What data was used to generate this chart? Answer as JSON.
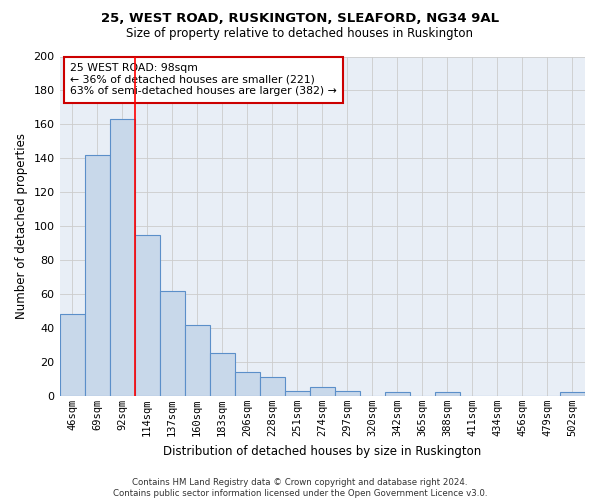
{
  "title1": "25, WEST ROAD, RUSKINGTON, SLEAFORD, NG34 9AL",
  "title2": "Size of property relative to detached houses in Ruskington",
  "xlabel": "Distribution of detached houses by size in Ruskington",
  "ylabel": "Number of detached properties",
  "bar_labels": [
    "46sqm",
    "69sqm",
    "92sqm",
    "114sqm",
    "137sqm",
    "160sqm",
    "183sqm",
    "206sqm",
    "228sqm",
    "251sqm",
    "274sqm",
    "297sqm",
    "320sqm",
    "342sqm",
    "365sqm",
    "388sqm",
    "411sqm",
    "434sqm",
    "456sqm",
    "479sqm",
    "502sqm"
  ],
  "bar_values": [
    48,
    142,
    163,
    95,
    62,
    42,
    25,
    14,
    11,
    3,
    5,
    3,
    0,
    2,
    0,
    2,
    0,
    0,
    0,
    0,
    2
  ],
  "bar_color": "#c8d8ea",
  "bar_edge_color": "#5b8fc9",
  "grid_color": "#cccccc",
  "annotation_text": "25 WEST ROAD: 98sqm\n← 36% of detached houses are smaller (221)\n63% of semi-detached houses are larger (382) →",
  "annotation_box_color": "#ffffff",
  "annotation_box_edge": "#cc0000",
  "red_line_x": 2.5,
  "footnote": "Contains HM Land Registry data © Crown copyright and database right 2024.\nContains public sector information licensed under the Open Government Licence v3.0.",
  "ylim": [
    0,
    200
  ],
  "yticks": [
    0,
    20,
    40,
    60,
    80,
    100,
    120,
    140,
    160,
    180,
    200
  ],
  "bg_color": "#e8eef6"
}
